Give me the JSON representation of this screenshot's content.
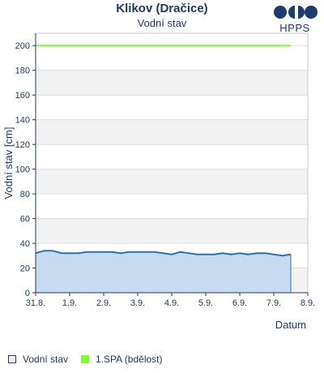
{
  "header": {
    "title": "Klikov (Dračice)",
    "subtitle": "Vodní stav",
    "logo_text": "HPPS"
  },
  "chart_data": {
    "type": "area",
    "xlabel": "Datum",
    "ylabel": "Vodní stav [cm]",
    "ylim": [
      0,
      210
    ],
    "yticks": [
      0,
      20,
      40,
      60,
      80,
      100,
      120,
      140,
      160,
      180,
      200
    ],
    "xlim": [
      "2023-08-31",
      "2023-09-08"
    ],
    "xtick_labels": [
      "31.8.",
      "1.9.",
      "2.9.",
      "3.9.",
      "4.9.",
      "5.9.",
      "6.9.",
      "7.9.",
      "8.9."
    ],
    "grid": true,
    "legend_position": "bottom-left",
    "series": [
      {
        "name": "Vodní stav",
        "color": "#2f6fb0",
        "fill": "#c6daf0",
        "x_days": [
          0.0,
          0.25,
          0.5,
          0.75,
          1.0,
          1.25,
          1.5,
          1.75,
          2.0,
          2.25,
          2.5,
          2.75,
          3.0,
          3.25,
          3.5,
          3.75,
          4.0,
          4.25,
          4.5,
          4.75,
          5.0,
          5.25,
          5.5,
          5.75,
          6.0,
          6.25,
          6.5,
          6.75,
          7.0,
          7.25,
          7.5
        ],
        "values": [
          32,
          34,
          34,
          32,
          32,
          32,
          33,
          33,
          33,
          33,
          32,
          33,
          33,
          33,
          33,
          32,
          31,
          33,
          32,
          31,
          31,
          31,
          32,
          31,
          32,
          31,
          32,
          32,
          31,
          30,
          31
        ]
      },
      {
        "name": "1.SPA (bdělost)",
        "color": "#7cff2a",
        "constant": 200,
        "x_days": [
          0.0,
          7.5
        ]
      }
    ]
  },
  "legend": {
    "items": [
      {
        "label": "Vodní stav",
        "color": "#ececec"
      },
      {
        "label": "1.SPA (bdělost)",
        "color": "#7cff2a"
      }
    ]
  }
}
